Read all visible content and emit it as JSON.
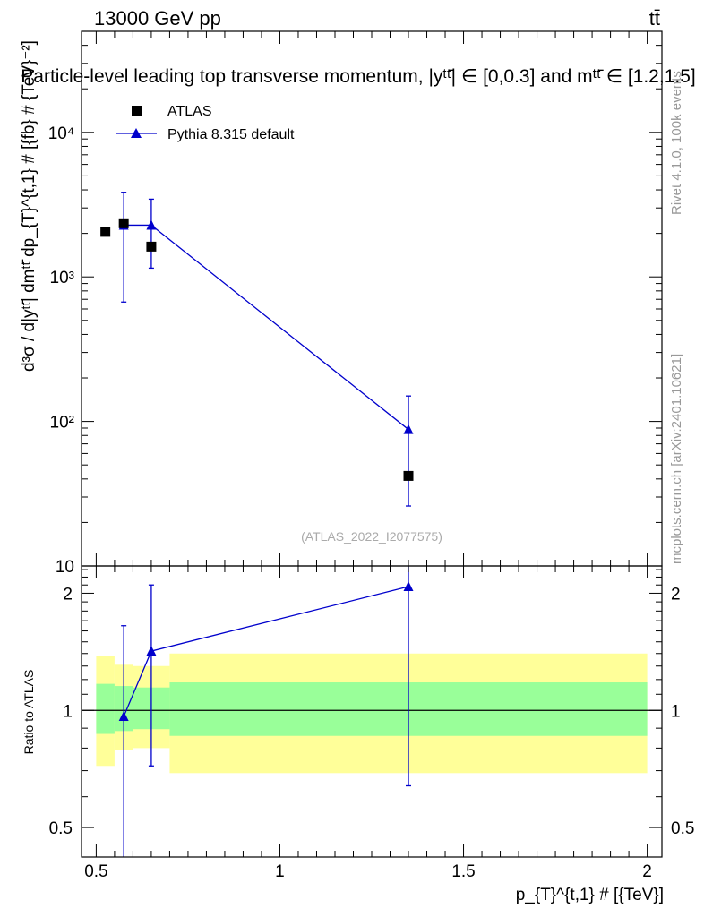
{
  "header": {
    "energy_label": "13000 GeV pp",
    "process_label": "tt̄",
    "title": "Particle-level leading top transverse momentum, |yᵗᵗ̄| ∈ [0,0.3] and mᵗᵗ̄ ∈ [1.2,1.5]"
  },
  "side_labels": {
    "rivet": "Rivet 4.1.0,  100k events",
    "mcplots": "mcplots.cern.ch [arXiv:2401.10621]"
  },
  "watermark": "(ATLAS_2022_I2077575)",
  "legend": {
    "atlas": "ATLAS",
    "pythia": "Pythia 8.315 default"
  },
  "colors": {
    "data": "#000000",
    "mc": "#0000cc",
    "band_inner": "#99ff99",
    "band_outer": "#ffff99"
  },
  "chart_data": [
    {
      "type": "scatter",
      "panel": "main",
      "ylabel": "d³σ / d|yᵗᵗ̄| dmᵗᵗ̄ dp_{T}^{t,1} # [{fb} # {TeV}⁻²]",
      "yscale": "log",
      "ylim": [
        10,
        50000
      ],
      "xlim": [
        0.46,
        2.04
      ],
      "y_ticks": [
        {
          "value": 10,
          "label": "10"
        },
        {
          "value": 100,
          "label": "10²"
        },
        {
          "value": 1000,
          "label": "10³"
        },
        {
          "value": 10000,
          "label": "10⁴"
        }
      ],
      "series": [
        {
          "name": "ATLAS",
          "marker": "square",
          "points": [
            {
              "x": 0.525,
              "y": 2050
            },
            {
              "x": 0.575,
              "y": 2350
            },
            {
              "x": 0.65,
              "y": 1620
            },
            {
              "x": 1.35,
              "y": 42
            }
          ]
        },
        {
          "name": "Pythia 8.315 default",
          "marker": "triangle",
          "line": true,
          "points": [
            {
              "x": 0.575,
              "y": 2280,
              "err_lo": 670,
              "err_hi": 3850
            },
            {
              "x": 0.65,
              "y": 2280,
              "err_lo": 1150,
              "err_hi": 3450
            },
            {
              "x": 1.35,
              "y": 88,
              "err_lo": 26,
              "err_hi": 150
            }
          ]
        }
      ]
    },
    {
      "type": "scatter",
      "panel": "ratio",
      "xlabel": "p_{T}^{t,1} # [{TeV}]",
      "ylabel": "Ratio to ATLAS",
      "yscale": "log",
      "ylim": [
        0.42,
        2.35
      ],
      "xlim": [
        0.46,
        2.04
      ],
      "x_ticks": [
        {
          "value": 0.5,
          "label": "0.5"
        },
        {
          "value": 1,
          "label": "1"
        },
        {
          "value": 1.5,
          "label": "1.5"
        },
        {
          "value": 2,
          "label": "2"
        }
      ],
      "y_ticks": [
        {
          "value": 0.5,
          "label": "0.5"
        },
        {
          "value": 1,
          "label": "1"
        },
        {
          "value": 2,
          "label": "2"
        }
      ],
      "bands": [
        {
          "x0": 0.5,
          "x1": 0.55,
          "inner_lo": 0.87,
          "inner_hi": 1.17,
          "outer_lo": 0.72,
          "outer_hi": 1.38
        },
        {
          "x0": 0.55,
          "x1": 0.6,
          "inner_lo": 0.885,
          "inner_hi": 1.155,
          "outer_lo": 0.79,
          "outer_hi": 1.31
        },
        {
          "x0": 0.6,
          "x1": 0.7,
          "inner_lo": 0.895,
          "inner_hi": 1.145,
          "outer_lo": 0.8,
          "outer_hi": 1.3
        },
        {
          "x0": 0.7,
          "x1": 2.0,
          "inner_lo": 0.86,
          "inner_hi": 1.18,
          "outer_lo": 0.69,
          "outer_hi": 1.4
        }
      ],
      "series": [
        {
          "name": "Pythia 8.315 default",
          "marker": "triangle",
          "line": true,
          "points": [
            {
              "x": 0.575,
              "y": 0.965,
              "err_lo": 0.28,
              "err_hi": 1.65
            },
            {
              "x": 0.65,
              "y": 1.42,
              "err_lo": 0.72,
              "err_hi": 2.1
            },
            {
              "x": 1.35,
              "y": 2.08,
              "err_lo": 0.64,
              "err_hi": 3.6
            }
          ]
        }
      ]
    }
  ]
}
